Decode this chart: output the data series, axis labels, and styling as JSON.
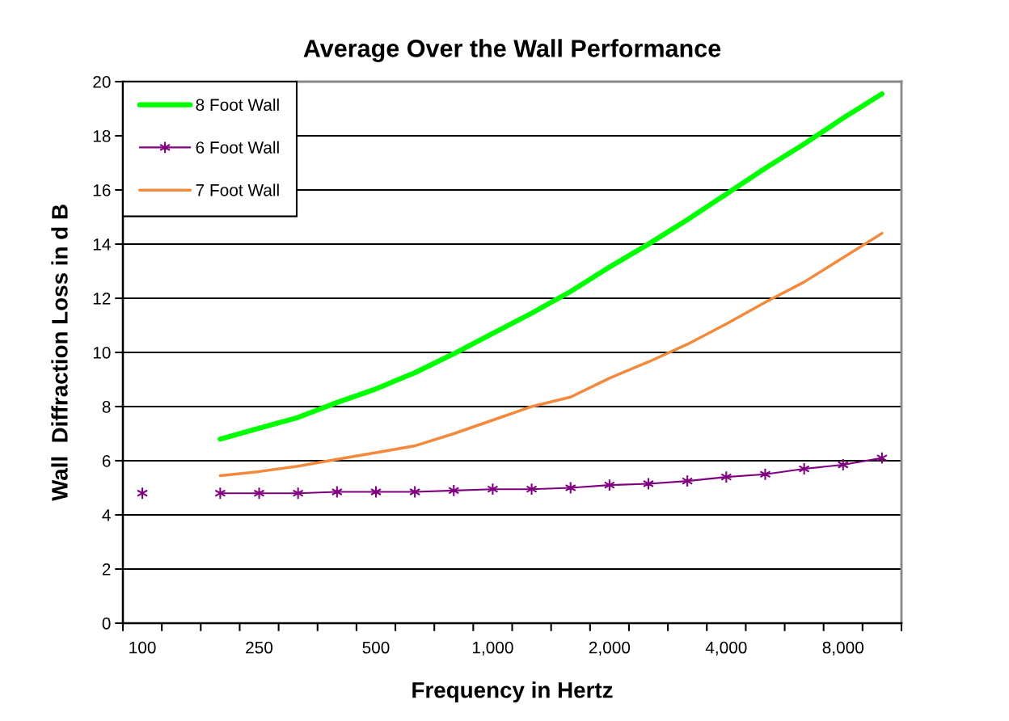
{
  "chart_data": {
    "type": "line",
    "title": "Average Over the Wall Performance",
    "xlabel": "Frequency in Hertz",
    "ylabel": "Wall  Diffraction Loss in d B",
    "categories": [
      "100",
      null,
      null,
      "250",
      null,
      null,
      "500",
      null,
      null,
      "1,000",
      null,
      null,
      "2,000",
      null,
      null,
      "4,000",
      null,
      null,
      "8,000",
      null
    ],
    "series": [
      {
        "name": "8 Foot Wall",
        "color": "#00ff00",
        "marker": "none",
        "values": [
          null,
          null,
          6.8,
          7.2,
          7.6,
          8.15,
          8.65,
          9.25,
          9.95,
          10.7,
          11.45,
          12.25,
          13.15,
          14.0,
          14.9,
          15.85,
          16.8,
          17.7,
          18.65,
          19.55
        ]
      },
      {
        "name": "6 Foot Wall",
        "color": "#800080",
        "marker": "cross",
        "values": [
          4.8,
          null,
          4.8,
          4.8,
          4.8,
          4.85,
          4.85,
          4.85,
          4.9,
          4.95,
          4.95,
          5.0,
          5.1,
          5.15,
          5.25,
          5.4,
          5.5,
          5.7,
          5.85,
          6.1
        ]
      },
      {
        "name": "7 Foot Wall",
        "color": "#f4893c",
        "marker": "none",
        "values": [
          null,
          null,
          5.45,
          5.6,
          5.8,
          6.05,
          6.3,
          6.55,
          7.0,
          7.5,
          8.0,
          8.35,
          9.05,
          9.65,
          10.3,
          11.05,
          11.85,
          12.6,
          13.5,
          14.4
        ]
      }
    ],
    "ylim": [
      0,
      20
    ],
    "yticks": [
      0,
      2,
      4,
      6,
      8,
      10,
      12,
      14,
      16,
      18,
      20
    ],
    "grid": "y",
    "legend": "top left",
    "line_style": "solid"
  }
}
